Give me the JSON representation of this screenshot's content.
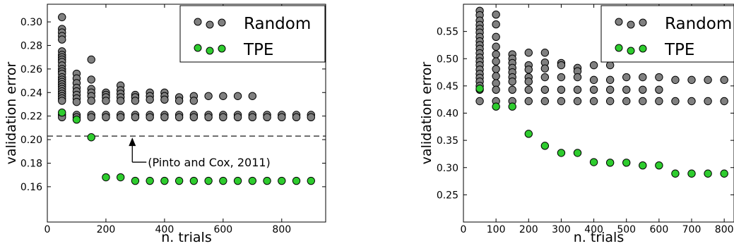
{
  "chart_data": [
    {
      "type": "scatter",
      "xlabel": "n. trials",
      "ylabel": "validation error",
      "xlim": [
        0,
        950
      ],
      "ylim": [
        0.13,
        0.315
      ],
      "xticks": [
        0,
        200,
        400,
        600,
        800
      ],
      "yticks": [
        0.16,
        0.18,
        0.2,
        0.22,
        0.24,
        0.26,
        0.28,
        0.3
      ],
      "ytick_labels": [
        "0.16",
        "0.18",
        "0.20",
        "0.22",
        "0.24",
        "0.26",
        "0.28",
        "0.30"
      ],
      "grid": false,
      "legend_position": "top-right",
      "series": [
        {
          "name": "Random",
          "color": "#808080",
          "points": [
            [
              50,
              0.304
            ],
            [
              50,
              0.294
            ],
            [
              50,
              0.291
            ],
            [
              50,
              0.288
            ],
            [
              50,
              0.285
            ],
            [
              50,
              0.275
            ],
            [
              50,
              0.272
            ],
            [
              50,
              0.27
            ],
            [
              50,
              0.268
            ],
            [
              50,
              0.266
            ],
            [
              50,
              0.263
            ],
            [
              50,
              0.26
            ],
            [
              50,
              0.258
            ],
            [
              50,
              0.256
            ],
            [
              50,
              0.253
            ],
            [
              50,
              0.251
            ],
            [
              50,
              0.249
            ],
            [
              50,
              0.247
            ],
            [
              50,
              0.245
            ],
            [
              50,
              0.243
            ],
            [
              50,
              0.241
            ],
            [
              50,
              0.239
            ],
            [
              50,
              0.237
            ],
            [
              50,
              0.235
            ],
            [
              50,
              0.233
            ],
            [
              50,
              0.221
            ],
            [
              50,
              0.219
            ],
            [
              100,
              0.256
            ],
            [
              100,
              0.252
            ],
            [
              100,
              0.248
            ],
            [
              100,
              0.244
            ],
            [
              100,
              0.241
            ],
            [
              100,
              0.238
            ],
            [
              100,
              0.235
            ],
            [
              100,
              0.232
            ],
            [
              100,
              0.221
            ],
            [
              100,
              0.219
            ],
            [
              150,
              0.268
            ],
            [
              150,
              0.251
            ],
            [
              150,
              0.243
            ],
            [
              150,
              0.24
            ],
            [
              150,
              0.237
            ],
            [
              150,
              0.233
            ],
            [
              150,
              0.221
            ],
            [
              150,
              0.219
            ],
            [
              200,
              0.24
            ],
            [
              200,
              0.238
            ],
            [
              200,
              0.236
            ],
            [
              200,
              0.233
            ],
            [
              200,
              0.221
            ],
            [
              200,
              0.219
            ],
            [
              250,
              0.246
            ],
            [
              250,
              0.242
            ],
            [
              250,
              0.239
            ],
            [
              250,
              0.236
            ],
            [
              250,
              0.233
            ],
            [
              250,
              0.221
            ],
            [
              250,
              0.219
            ],
            [
              300,
              0.238
            ],
            [
              300,
              0.236
            ],
            [
              300,
              0.233
            ],
            [
              300,
              0.221
            ],
            [
              300,
              0.219
            ],
            [
              350,
              0.24
            ],
            [
              350,
              0.237
            ],
            [
              350,
              0.234
            ],
            [
              350,
              0.221
            ],
            [
              350,
              0.219
            ],
            [
              400,
              0.24
            ],
            [
              400,
              0.237
            ],
            [
              400,
              0.234
            ],
            [
              400,
              0.221
            ],
            [
              400,
              0.219
            ],
            [
              450,
              0.236
            ],
            [
              450,
              0.233
            ],
            [
              450,
              0.221
            ],
            [
              450,
              0.219
            ],
            [
              500,
              0.237
            ],
            [
              500,
              0.233
            ],
            [
              500,
              0.221
            ],
            [
              500,
              0.219
            ],
            [
              550,
              0.237
            ],
            [
              550,
              0.221
            ],
            [
              550,
              0.219
            ],
            [
              600,
              0.237
            ],
            [
              600,
              0.221
            ],
            [
              600,
              0.219
            ],
            [
              650,
              0.237
            ],
            [
              650,
              0.221
            ],
            [
              650,
              0.219
            ],
            [
              700,
              0.237
            ],
            [
              700,
              0.221
            ],
            [
              700,
              0.219
            ],
            [
              750,
              0.221
            ],
            [
              750,
              0.219
            ],
            [
              800,
              0.221
            ],
            [
              800,
              0.219
            ],
            [
              850,
              0.221
            ],
            [
              850,
              0.219
            ],
            [
              900,
              0.221
            ],
            [
              900,
              0.219
            ]
          ]
        },
        {
          "name": "TPE",
          "color": "#2ecc2e",
          "points": [
            [
              50,
              0.223
            ],
            [
              100,
              0.217
            ],
            [
              150,
              0.202
            ],
            [
              200,
              0.168
            ],
            [
              250,
              0.168
            ],
            [
              300,
              0.165
            ],
            [
              350,
              0.165
            ],
            [
              400,
              0.165
            ],
            [
              450,
              0.165
            ],
            [
              500,
              0.165
            ],
            [
              550,
              0.165
            ],
            [
              600,
              0.165
            ],
            [
              650,
              0.165
            ],
            [
              700,
              0.165
            ],
            [
              750,
              0.165
            ],
            [
              800,
              0.165
            ],
            [
              850,
              0.165
            ],
            [
              900,
              0.165
            ]
          ]
        }
      ],
      "reference_line": {
        "y": 0.203,
        "style": "dashed"
      },
      "annotation": {
        "text": "(Pinto and Cox, 2011)",
        "x": 290,
        "y": 0.203
      }
    },
    {
      "type": "scatter",
      "xlabel": "n. trials",
      "ylabel": "validation error",
      "xlim": [
        0,
        830
      ],
      "ylim": [
        0.2,
        0.6
      ],
      "xticks": [
        0,
        100,
        200,
        300,
        400,
        500,
        600,
        700,
        800
      ],
      "yticks": [
        0.25,
        0.3,
        0.35,
        0.4,
        0.45,
        0.5,
        0.55
      ],
      "ytick_labels": [
        "0.25",
        "0.30",
        "0.35",
        "0.40",
        "0.45",
        "0.50",
        "0.55"
      ],
      "grid": false,
      "legend_position": "top-right",
      "series": [
        {
          "name": "Random",
          "color": "#808080",
          "points": [
            [
              50,
              0.588
            ],
            [
              50,
              0.58
            ],
            [
              50,
              0.57
            ],
            [
              50,
              0.562
            ],
            [
              50,
              0.555
            ],
            [
              50,
              0.548
            ],
            [
              50,
              0.54
            ],
            [
              50,
              0.532
            ],
            [
              50,
              0.525
            ],
            [
              50,
              0.518
            ],
            [
              50,
              0.51
            ],
            [
              50,
              0.502
            ],
            [
              50,
              0.495
            ],
            [
              50,
              0.488
            ],
            [
              50,
              0.48
            ],
            [
              50,
              0.472
            ],
            [
              50,
              0.465
            ],
            [
              50,
              0.458
            ],
            [
              50,
              0.45
            ],
            [
              50,
              0.443
            ],
            [
              50,
              0.422
            ],
            [
              100,
              0.581
            ],
            [
              100,
              0.563
            ],
            [
              100,
              0.54
            ],
            [
              100,
              0.522
            ],
            [
              100,
              0.508
            ],
            [
              100,
              0.495
            ],
            [
              100,
              0.481
            ],
            [
              100,
              0.468
            ],
            [
              100,
              0.455
            ],
            [
              100,
              0.443
            ],
            [
              100,
              0.422
            ],
            [
              150,
              0.508
            ],
            [
              150,
              0.5
            ],
            [
              150,
              0.492
            ],
            [
              150,
              0.483
            ],
            [
              150,
              0.475
            ],
            [
              150,
              0.466
            ],
            [
              150,
              0.458
            ],
            [
              150,
              0.443
            ],
            [
              150,
              0.422
            ],
            [
              200,
              0.511
            ],
            [
              200,
              0.488
            ],
            [
              200,
              0.48
            ],
            [
              200,
              0.466
            ],
            [
              200,
              0.458
            ],
            [
              200,
              0.443
            ],
            [
              200,
              0.422
            ],
            [
              250,
              0.511
            ],
            [
              250,
              0.493
            ],
            [
              250,
              0.482
            ],
            [
              250,
              0.466
            ],
            [
              250,
              0.443
            ],
            [
              250,
              0.422
            ],
            [
              300,
              0.492
            ],
            [
              300,
              0.488
            ],
            [
              300,
              0.466
            ],
            [
              300,
              0.443
            ],
            [
              300,
              0.422
            ],
            [
              350,
              0.483
            ],
            [
              350,
              0.477
            ],
            [
              350,
              0.466
            ],
            [
              350,
              0.443
            ],
            [
              350,
              0.422
            ],
            [
              400,
              0.488
            ],
            [
              400,
              0.461
            ],
            [
              400,
              0.443
            ],
            [
              400,
              0.422
            ],
            [
              450,
              0.488
            ],
            [
              450,
              0.461
            ],
            [
              450,
              0.443
            ],
            [
              450,
              0.422
            ],
            [
              500,
              0.466
            ],
            [
              500,
              0.443
            ],
            [
              500,
              0.422
            ],
            [
              550,
              0.466
            ],
            [
              550,
              0.443
            ],
            [
              550,
              0.422
            ],
            [
              600,
              0.466
            ],
            [
              600,
              0.443
            ],
            [
              600,
              0.422
            ],
            [
              650,
              0.461
            ],
            [
              650,
              0.422
            ],
            [
              700,
              0.461
            ],
            [
              700,
              0.422
            ],
            [
              750,
              0.461
            ],
            [
              750,
              0.422
            ],
            [
              800,
              0.461
            ],
            [
              800,
              0.422
            ]
          ]
        },
        {
          "name": "TPE",
          "color": "#2ecc2e",
          "points": [
            [
              50,
              0.445
            ],
            [
              100,
              0.412
            ],
            [
              150,
              0.412
            ],
            [
              200,
              0.362
            ],
            [
              250,
              0.34
            ],
            [
              300,
              0.327
            ],
            [
              350,
              0.327
            ],
            [
              400,
              0.31
            ],
            [
              450,
              0.309
            ],
            [
              500,
              0.309
            ],
            [
              550,
              0.304
            ],
            [
              600,
              0.304
            ],
            [
              650,
              0.289
            ],
            [
              700,
              0.289
            ],
            [
              750,
              0.289
            ],
            [
              800,
              0.289
            ]
          ]
        }
      ]
    }
  ]
}
